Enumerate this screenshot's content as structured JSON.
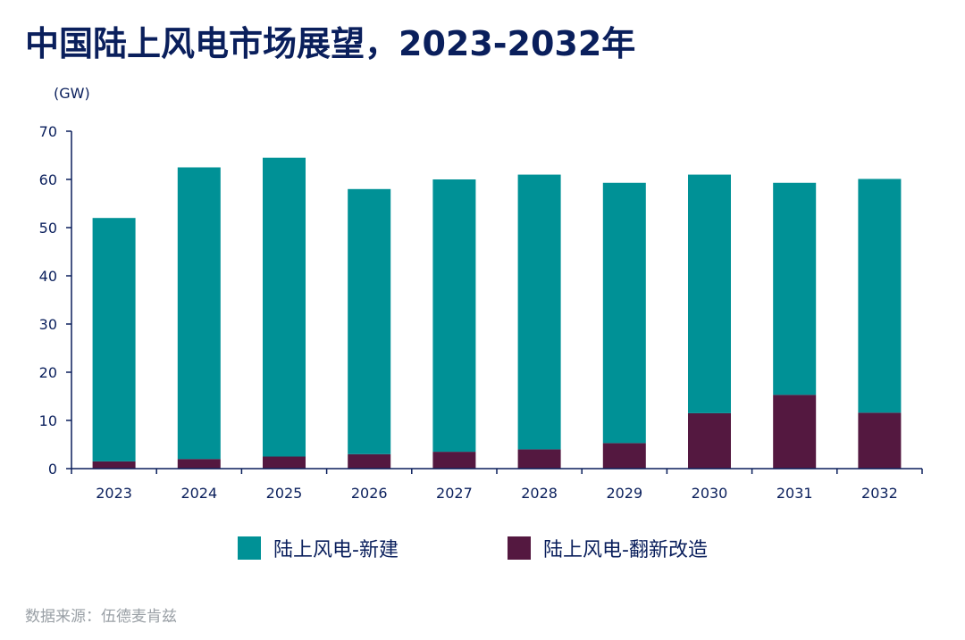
{
  "title": "中国陆上风电市场展望，2023-2032年",
  "source": "数据来源：伍德麦肯兹",
  "colors": {
    "new": "#009196",
    "repower": "#541840",
    "axis": "#0a1f5c"
  },
  "chart_data": {
    "type": "bar",
    "stacked": true,
    "unit": "(GW)",
    "categories": [
      "2023",
      "2024",
      "2025",
      "2026",
      "2027",
      "2028",
      "2029",
      "2030",
      "2031",
      "2032"
    ],
    "series": [
      {
        "name": "陆上风电-新建",
        "values": [
          50.5,
          60.5,
          62.0,
          55.0,
          56.5,
          57.0,
          54.0,
          49.5,
          44.0,
          48.5
        ]
      },
      {
        "name": "陆上风电-翻新改造",
        "values": [
          1.5,
          2.0,
          2.5,
          3.0,
          3.5,
          4.0,
          5.3,
          11.5,
          15.3,
          11.6
        ]
      }
    ],
    "ylim": [
      0,
      70
    ],
    "yticks": [
      0,
      10,
      20,
      30,
      40,
      50,
      60,
      70
    ],
    "grid": false,
    "legend": "bottom"
  }
}
